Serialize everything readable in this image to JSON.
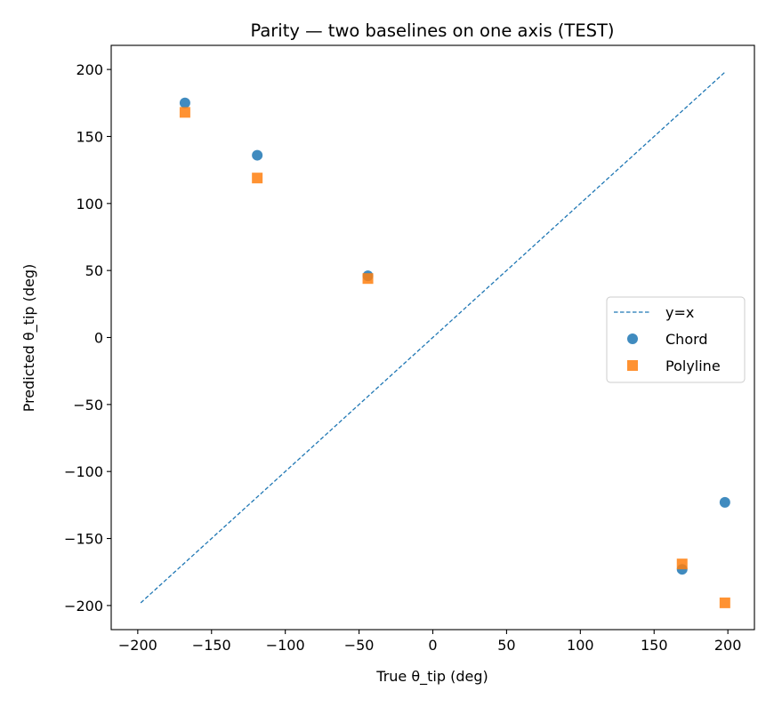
{
  "chart_data": {
    "type": "scatter",
    "title": "Parity — two baselines on one axis (TEST)",
    "xlabel": "True θ_tip (deg)",
    "ylabel": "Predicted θ_tip (deg)",
    "xlim": [
      -218,
      218
    ],
    "ylim": [
      -218,
      218
    ],
    "xticks": [
      -200,
      -150,
      -100,
      -50,
      0,
      50,
      100,
      150,
      200
    ],
    "yticks": [
      -200,
      -150,
      -100,
      -50,
      0,
      50,
      100,
      150,
      200
    ],
    "tick_labels": [
      "−200",
      "−150",
      "−100",
      "−50",
      "0",
      "50",
      "100",
      "150",
      "200"
    ],
    "reference_line": {
      "name": "y=x",
      "x": [
        -198,
        198
      ],
      "y": [
        -198,
        198
      ],
      "color": "#1f77b4",
      "style": "dashed"
    },
    "series": [
      {
        "name": "Chord",
        "marker": "circle",
        "color": "#1f77b4",
        "x": [
          -168,
          -119,
          -44,
          169,
          198
        ],
        "y": [
          175,
          136,
          46,
          -173,
          -123
        ]
      },
      {
        "name": "Polyline",
        "marker": "square",
        "color": "#ff7f0e",
        "x": [
          -168,
          -119,
          -44,
          169,
          198
        ],
        "y": [
          168,
          119,
          44,
          -169,
          -198
        ]
      }
    ],
    "legend": {
      "position": "center-right",
      "entries": [
        "y=x",
        "Chord",
        "Polyline"
      ]
    },
    "grid": false
  }
}
